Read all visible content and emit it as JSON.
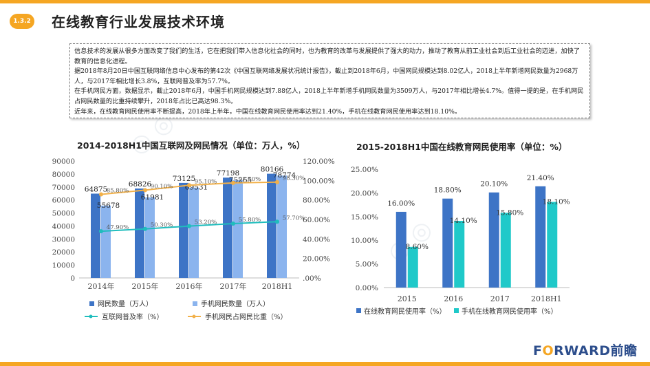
{
  "header": {
    "section_badge": "1.3.2",
    "title": "在线教育行业发展技术环境"
  },
  "description": {
    "paragraphs": [
      "信息技术的发展从很多方面改变了我们的生活，它在把我们带入信息化社会的同时，也为教育的改革与发展提供了强大的动力，推动了教育从前工业社会到后工业社会的迈进，加快了教育的信息化进程。",
      "据2018年8月20日中国互联网络信息中心发布的第42次《中国互联网络发展状况统计报告》，截止到2018年6月，中国网民规模达到8.02亿人，2018上半年新增网民数量为2968万人，与2017年相比增长3.8%，互联网普及率为57.7%。",
      "在手机网民方面，数据显示，截止2018年6月，中国手机网民规模达到7.88亿人，2018上半年新增手机网民数量为3509万人，与2017年相比增长4.7%。值得一提的是，在手机网民占网民数量的比重持续攀升，2018年占比已高达98.3%。",
      "近年来，在线教育网民使用率不断提高，2018年上半年，中国在线教育网民使用率达到21.40%，手机在线教育网民使用率达到18.10%。"
    ]
  },
  "chart_data": [
    {
      "type": "bar",
      "title": "2014-2018H1中国互联网及网民情况（单位：万人，%）",
      "categories": [
        "2014年",
        "2015年",
        "2016年",
        "2017年",
        "2018H1"
      ],
      "series": [
        {
          "name": "网民数量（万人）",
          "type": "bar",
          "axis": "left",
          "color": "#3d74c6",
          "values": [
            64875,
            68826,
            73125,
            77198,
            80166
          ],
          "labels": [
            "64875",
            "68826",
            "73125",
            "77198",
            "80166"
          ]
        },
        {
          "name": "手机网民数量（万人）",
          "type": "bar",
          "axis": "left",
          "color": "#8bb4ee",
          "values": [
            55678,
            61981,
            69531,
            75265,
            78774
          ],
          "labels": [
            "55678",
            "61981",
            "69531",
            "75265",
            "78774"
          ]
        },
        {
          "name": "互联网普及率（%）",
          "type": "line",
          "axis": "right",
          "color": "#1fbdbd",
          "values": [
            47.9,
            50.3,
            53.2,
            55.8,
            57.7
          ],
          "labels": [
            "47.90%",
            "50.30%",
            "53.20%",
            "55.80%",
            "57.70%"
          ]
        },
        {
          "name": "手机网民占网民比重（%）",
          "type": "line",
          "axis": "right",
          "color": "#f2b14a",
          "values": [
            85.8,
            90.1,
            95.1,
            97.5,
            98.3
          ],
          "labels": [
            "85.80%",
            "90.10%",
            "95.10%",
            "97.50%",
            "98.30%"
          ]
        }
      ],
      "ylim_left": [
        0,
        90000
      ],
      "yticks_left": [
        "0",
        "10000",
        "20000",
        "30000",
        "40000",
        "50000",
        "60000",
        "70000",
        "80000",
        "90000"
      ],
      "ylim_right": [
        0,
        120
      ],
      "yticks_right": [
        ".00%",
        "20.00%",
        "40.00%",
        "60.00%",
        "80.00%",
        "100.00%",
        "120.00%"
      ],
      "grid": false,
      "legend": "bottom"
    },
    {
      "type": "bar",
      "title": "2015-2018H1中国在线教育网民使用率（单位：%）",
      "categories": [
        "2015",
        "2016",
        "2017",
        "2018H1"
      ],
      "series": [
        {
          "name": "在线教育网民使用率（%）",
          "color": "#3d74c6",
          "values": [
            16.0,
            18.8,
            20.1,
            21.4
          ],
          "labels": [
            "16.00%",
            "18.80%",
            "20.10%",
            "21.40%"
          ]
        },
        {
          "name": "手机在线教育网民使用率（%）",
          "color": "#1fc9c9",
          "values": [
            8.6,
            14.1,
            15.8,
            18.1
          ],
          "labels": [
            "8.60%",
            "14.10%",
            "15.80%",
            "18.10%"
          ]
        }
      ],
      "ylim": [
        0,
        25
      ],
      "yticks": [
        "0.00%",
        "5.00%",
        "10.00%",
        "15.00%",
        "20.00%",
        "25.00%"
      ],
      "grid": false,
      "legend": "bottom"
    }
  ],
  "footer": {
    "brand_o": "O",
    "brand_rest": "RWARD前瞻",
    "brand_f": "F"
  }
}
